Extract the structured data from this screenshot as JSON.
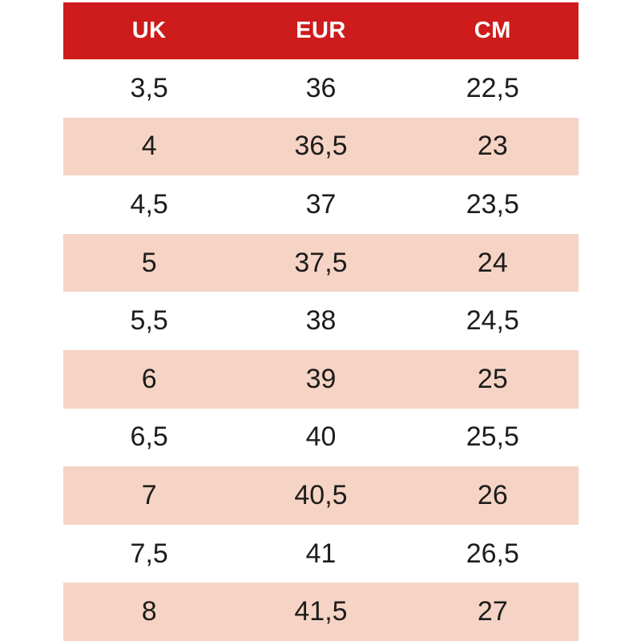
{
  "chart_data": {
    "type": "table",
    "columns": [
      "UK",
      "EUR",
      "CM"
    ],
    "rows": [
      {
        "uk": "3,5",
        "eur": "36",
        "cm": "22,5"
      },
      {
        "uk": "4",
        "eur": "36,5",
        "cm": "23"
      },
      {
        "uk": "4,5",
        "eur": "37",
        "cm": "23,5"
      },
      {
        "uk": "5",
        "eur": "37,5",
        "cm": "24"
      },
      {
        "uk": "5,5",
        "eur": "38",
        "cm": "24,5"
      },
      {
        "uk": "6",
        "eur": "39",
        "cm": "25"
      },
      {
        "uk": "6,5",
        "eur": "40",
        "cm": "25,5"
      },
      {
        "uk": "7",
        "eur": "40,5",
        "cm": "26"
      },
      {
        "uk": "7,5",
        "eur": "41",
        "cm": "26,5"
      },
      {
        "uk": "8",
        "eur": "41,5",
        "cm": "27"
      }
    ]
  },
  "colors": {
    "page_bg": "#FFFFFF",
    "header_bg": "#CE1C1C",
    "header_text": "#FFFFFF",
    "row_even_bg": "#FFFFFF",
    "row_odd_bg": "#F6D4C5",
    "cell_text": "#1D1D1B"
  }
}
